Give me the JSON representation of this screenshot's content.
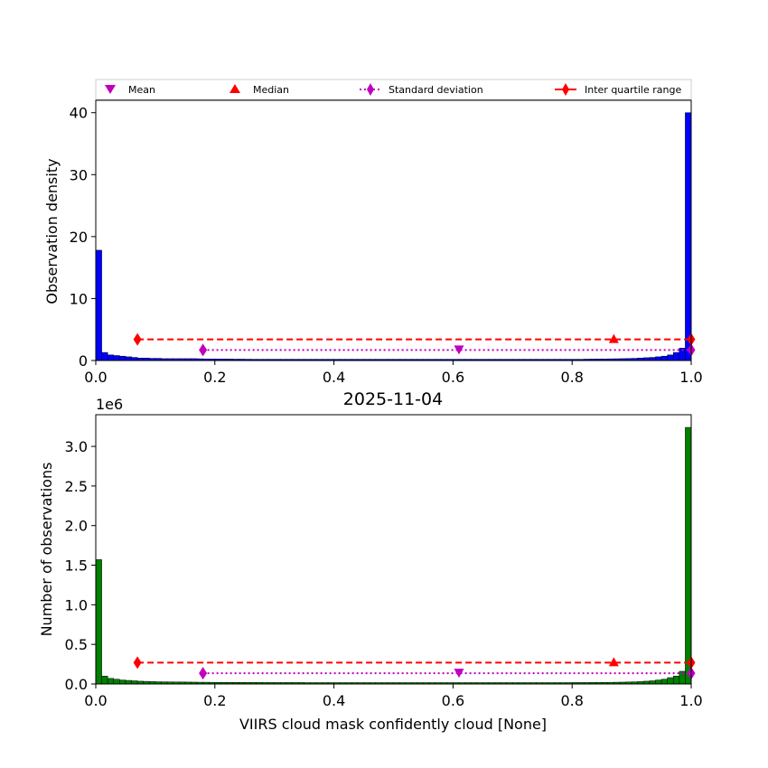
{
  "colors": {
    "density_bars": "#0000ff",
    "count_bars": "#008000",
    "bar_edge": "#000000",
    "mean_std": "#bf00bf",
    "median_iqr": "#ff0000",
    "axes": "#000000"
  },
  "legend": {
    "mean": "Mean",
    "median": "Median",
    "std": "Standard deviation",
    "iqr": "Inter quartile range"
  },
  "title": "2025-11-04",
  "chart_data": [
    {
      "type": "bar",
      "panel": "top",
      "title": "",
      "xlabel": "",
      "ylabel": "Observation density",
      "xlim": [
        0,
        1
      ],
      "ylim": [
        0,
        42
      ],
      "xticks": [
        0,
        0.2,
        0.4,
        0.6,
        0.8,
        1.0
      ],
      "xtick_labels": [
        "0.0",
        "0.2",
        "0.4",
        "0.6",
        "0.8",
        "1.0"
      ],
      "yticks": [
        0,
        10,
        20,
        30,
        40
      ],
      "ytick_labels": [
        "0",
        "10",
        "20",
        "30",
        "40"
      ],
      "bins": 100,
      "values": [
        17.8,
        1.3,
        0.9,
        0.8,
        0.7,
        0.6,
        0.5,
        0.4,
        0.4,
        0.35,
        0.35,
        0.3,
        0.3,
        0.3,
        0.3,
        0.3,
        0.3,
        0.28,
        0.26,
        0.25,
        0.25,
        0.24,
        0.23,
        0.22,
        0.22,
        0.21,
        0.2,
        0.2,
        0.2,
        0.2,
        0.2,
        0.2,
        0.2,
        0.2,
        0.2,
        0.2,
        0.2,
        0.2,
        0.2,
        0.2,
        0.2,
        0.2,
        0.2,
        0.2,
        0.2,
        0.2,
        0.2,
        0.2,
        0.2,
        0.2,
        0.2,
        0.2,
        0.2,
        0.2,
        0.2,
        0.2,
        0.2,
        0.2,
        0.2,
        0.2,
        0.2,
        0.2,
        0.2,
        0.2,
        0.2,
        0.2,
        0.2,
        0.2,
        0.2,
        0.2,
        0.2,
        0.2,
        0.2,
        0.2,
        0.2,
        0.2,
        0.2,
        0.2,
        0.2,
        0.2,
        0.2,
        0.2,
        0.22,
        0.23,
        0.24,
        0.25,
        0.27,
        0.28,
        0.3,
        0.32,
        0.35,
        0.4,
        0.45,
        0.5,
        0.6,
        0.7,
        0.9,
        1.3,
        2.0,
        40.0
      ],
      "stats": {
        "mean": 0.61,
        "median": 0.87,
        "std": [
          0.18,
          1.0
        ],
        "iqr": [
          0.07,
          1.0
        ],
        "mean_std_y": 1.7,
        "median_iqr_y": 3.4
      }
    },
    {
      "type": "bar",
      "panel": "bottom",
      "title": "2025-11-04",
      "xlabel": "VIIRS cloud mask confidently cloud [None]",
      "ylabel": "Number of observations",
      "offset_label": "1e6",
      "xlim": [
        0,
        1
      ],
      "ylim": [
        0,
        3.4
      ],
      "xticks": [
        0,
        0.2,
        0.4,
        0.6,
        0.8,
        1.0
      ],
      "xtick_labels": [
        "0.0",
        "0.2",
        "0.4",
        "0.6",
        "0.8",
        "1.0"
      ],
      "yticks": [
        0,
        0.5,
        1.0,
        1.5,
        2.0,
        2.5,
        3.0
      ],
      "ytick_labels": [
        "0.0",
        "0.5",
        "1.0",
        "1.5",
        "2.0",
        "2.5",
        "3.0"
      ],
      "bins": 100,
      "values": [
        1.57,
        0.1,
        0.07,
        0.06,
        0.05,
        0.045,
        0.04,
        0.035,
        0.033,
        0.03,
        0.028,
        0.027,
        0.026,
        0.025,
        0.025,
        0.024,
        0.023,
        0.022,
        0.022,
        0.021,
        0.02,
        0.02,
        0.02,
        0.02,
        0.02,
        0.019,
        0.019,
        0.019,
        0.018,
        0.018,
        0.018,
        0.018,
        0.018,
        0.018,
        0.018,
        0.017,
        0.017,
        0.017,
        0.017,
        0.017,
        0.017,
        0.017,
        0.017,
        0.017,
        0.017,
        0.017,
        0.017,
        0.017,
        0.017,
        0.017,
        0.017,
        0.017,
        0.017,
        0.017,
        0.017,
        0.017,
        0.017,
        0.017,
        0.017,
        0.017,
        0.017,
        0.017,
        0.017,
        0.017,
        0.017,
        0.017,
        0.017,
        0.017,
        0.017,
        0.017,
        0.017,
        0.017,
        0.017,
        0.017,
        0.017,
        0.017,
        0.017,
        0.017,
        0.017,
        0.017,
        0.018,
        0.018,
        0.018,
        0.019,
        0.019,
        0.02,
        0.021,
        0.022,
        0.023,
        0.025,
        0.027,
        0.03,
        0.035,
        0.04,
        0.05,
        0.06,
        0.08,
        0.1,
        0.16,
        3.24
      ],
      "stats": {
        "mean": 0.61,
        "median": 0.87,
        "std": [
          0.18,
          1.0
        ],
        "iqr": [
          0.07,
          1.0
        ],
        "mean_std_y": 0.135,
        "median_iqr_y": 0.27
      }
    }
  ]
}
